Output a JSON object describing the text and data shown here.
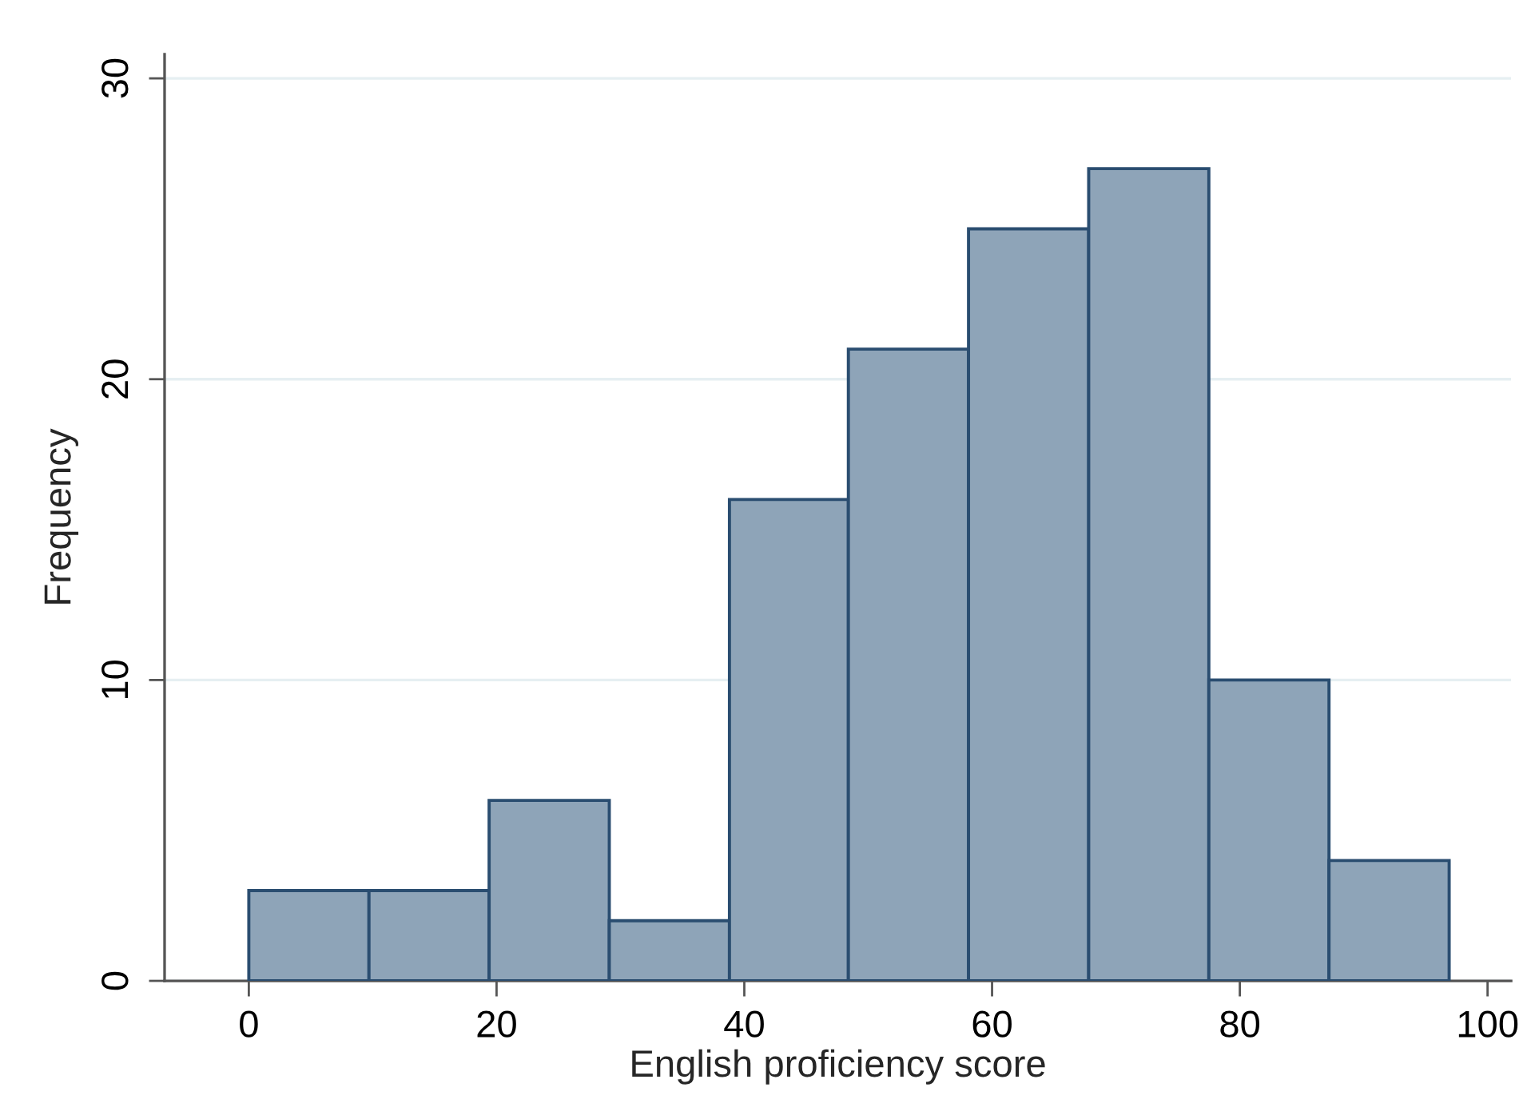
{
  "chart_data": {
    "type": "histogram",
    "xlabel": "English proficiency score",
    "ylabel": "Frequency",
    "bins": [
      0,
      9.7,
      19.4,
      29.1,
      38.8,
      48.4,
      58.1,
      67.8,
      77.5,
      87.2,
      96.9
    ],
    "values": [
      3,
      3,
      6,
      2,
      16,
      21,
      25,
      27,
      10,
      4
    ],
    "color": "#8ea4b8",
    "xlim": [
      -6.8,
      101.9
    ],
    "ylim": [
      0,
      30.8
    ],
    "xticks": [
      0,
      20,
      40,
      60,
      80,
      100
    ],
    "yticks": [
      0,
      10,
      20,
      30
    ],
    "grid": "y"
  }
}
